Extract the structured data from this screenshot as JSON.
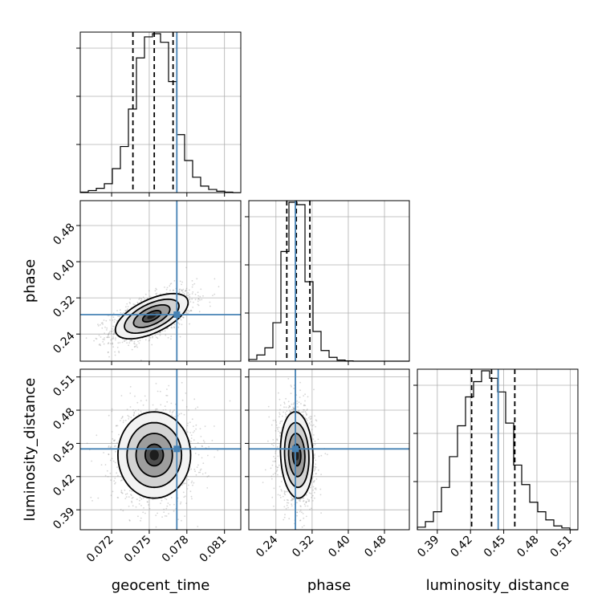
{
  "truth_color": "#4682b4",
  "chart_data": {
    "type": "corner",
    "parameters": [
      "geocent_time",
      "phase",
      "luminosity_distance"
    ],
    "truths": {
      "geocent_time": 0.0772,
      "phase": 0.283,
      "luminosity_distance": 0.445
    },
    "grid": true,
    "histograms": [
      {
        "parameter": "geocent_time",
        "range": [
          0.0695,
          0.0823
        ],
        "ylim": [
          0,
          1.0
        ],
        "bin_edges": [
          0.0695,
          0.07014,
          0.07078,
          0.07142,
          0.07206,
          0.0727,
          0.07334,
          0.07398,
          0.07462,
          0.07526,
          0.0759,
          0.07654,
          0.07718,
          0.07782,
          0.07846,
          0.0791,
          0.07974,
          0.08038,
          0.08102,
          0.08166,
          0.0823
        ],
        "counts": [
          0.003,
          0.013,
          0.027,
          0.056,
          0.151,
          0.29,
          0.526,
          0.848,
          0.98,
          1.0,
          0.946,
          0.699,
          0.365,
          0.202,
          0.097,
          0.041,
          0.02,
          0.009,
          0.003,
          0.0
        ],
        "quantiles": [
          0.0737,
          0.0754,
          0.0769
        ]
      },
      {
        "parameter": "phase",
        "range": [
          0.18,
          0.535
        ],
        "ylim": [
          0,
          1.0
        ],
        "bin_edges": [
          0.18,
          0.19775,
          0.2155,
          0.23325,
          0.251,
          0.26875,
          0.2865,
          0.30425,
          0.322,
          0.33975,
          0.3575,
          0.37525,
          0.393,
          0.41075,
          0.4285,
          0.44625,
          0.464,
          0.48175,
          0.4995,
          0.51725,
          0.535
        ],
        "counts": [
          0.011,
          0.039,
          0.084,
          0.242,
          0.69,
          1.0,
          0.985,
          0.5,
          0.187,
          0.067,
          0.024,
          0.007,
          0.002,
          0.0,
          0.0,
          0.0,
          0.0,
          0.0,
          0.0,
          0.0
        ],
        "quantiles": [
          0.264,
          0.285,
          0.315
        ]
      },
      {
        "parameter": "luminosity_distance",
        "range": [
          0.372,
          0.517
        ],
        "ylim": [
          0,
          1.0
        ],
        "bin_edges": [
          0.372,
          0.37925,
          0.3865,
          0.39375,
          0.401,
          0.40825,
          0.4155,
          0.42275,
          0.43,
          0.43725,
          0.4445,
          0.45175,
          0.459,
          0.46625,
          0.4735,
          0.48075,
          0.488,
          0.49525,
          0.5025,
          0.50975,
          0.517
        ],
        "counts": [
          0.016,
          0.051,
          0.113,
          0.266,
          0.46,
          0.654,
          0.836,
          0.932,
          1.0,
          0.953,
          0.867,
          0.671,
          0.407,
          0.284,
          0.173,
          0.113,
          0.062,
          0.024,
          0.011,
          0.0
        ],
        "quantiles": [
          0.421,
          0.439,
          0.46
        ]
      }
    ],
    "pairs": [
      {
        "x": "geocent_time",
        "y": "phase",
        "xlim": [
          0.0695,
          0.0823
        ],
        "ylim": [
          0.18,
          0.535
        ],
        "center": [
          0.0752,
          0.2795
        ],
        "sigma": [
          0.00145,
          0.025
        ],
        "rho": 0.6
      },
      {
        "x": "geocent_time",
        "y": "luminosity_distance",
        "xlim": [
          0.0695,
          0.0823
        ],
        "ylim": [
          0.372,
          0.517
        ],
        "center": [
          0.0754,
          0.4395
        ],
        "sigma": [
          0.00145,
          0.0195
        ],
        "rho": 0.0
      },
      {
        "x": "phase",
        "y": "luminosity_distance",
        "xlim": [
          0.18,
          0.535
        ],
        "ylim": [
          0.372,
          0.517
        ],
        "center": [
          0.286,
          0.4395
        ],
        "sigma": [
          0.018,
          0.0195
        ],
        "rho": -0.1
      }
    ],
    "ticks": {
      "geocent_time": [
        "0.072",
        "0.075",
        "0.078",
        "0.081"
      ],
      "phase": [
        "0.24",
        "0.32",
        "0.40",
        "0.48"
      ],
      "luminosity_distance": [
        "0.39",
        "0.42",
        "0.45",
        "0.48",
        "0.51"
      ]
    },
    "xlabels": {
      "geocent_time": "geocent_time",
      "phase": "phase",
      "luminosity_distance": "luminosity_distance"
    },
    "ylabels": {
      "phase": "phase",
      "luminosity_distance": "luminosity_distance"
    }
  }
}
